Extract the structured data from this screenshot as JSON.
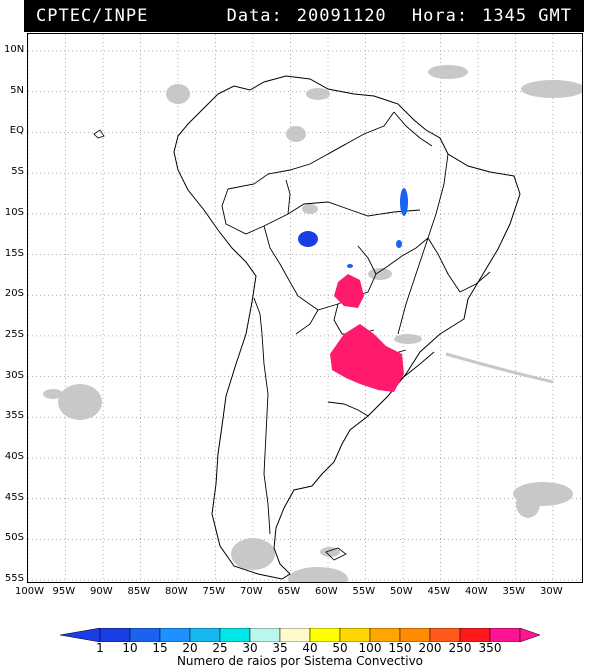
{
  "header": {
    "source": "CPTEC/INPE",
    "date_label": "Data:",
    "date_value": "20091120",
    "time_label": "Hora:",
    "time_value": "1345 GMT"
  },
  "lat_labels": [
    "10N",
    "5N",
    "EQ",
    "5S",
    "10S",
    "15S",
    "20S",
    "25S",
    "30S",
    "35S",
    "40S",
    "45S",
    "50S",
    "55S"
  ],
  "lon_labels": [
    "100W",
    "95W",
    "90W",
    "85W",
    "80W",
    "75W",
    "70W",
    "65W",
    "60W",
    "55W",
    "50W",
    "45W",
    "40W",
    "35W",
    "30W"
  ],
  "legend": {
    "title": "Numero de raios por Sistema Convectivo",
    "ticks": [
      "1",
      "10",
      "15",
      "20",
      "25",
      "30",
      "35",
      "40",
      "50",
      "100",
      "150",
      "200",
      "250",
      "350"
    ],
    "colors": [
      "#1a3ee6",
      "#1a62f0",
      "#1e90ff",
      "#16b8f0",
      "#00e6e6",
      "#b8f7ec",
      "#fffacd",
      "#ffff00",
      "#ffd700",
      "#ffa500",
      "#ff8c00",
      "#ff5a1a",
      "#ff1a1a",
      "#ff1493"
    ]
  }
}
